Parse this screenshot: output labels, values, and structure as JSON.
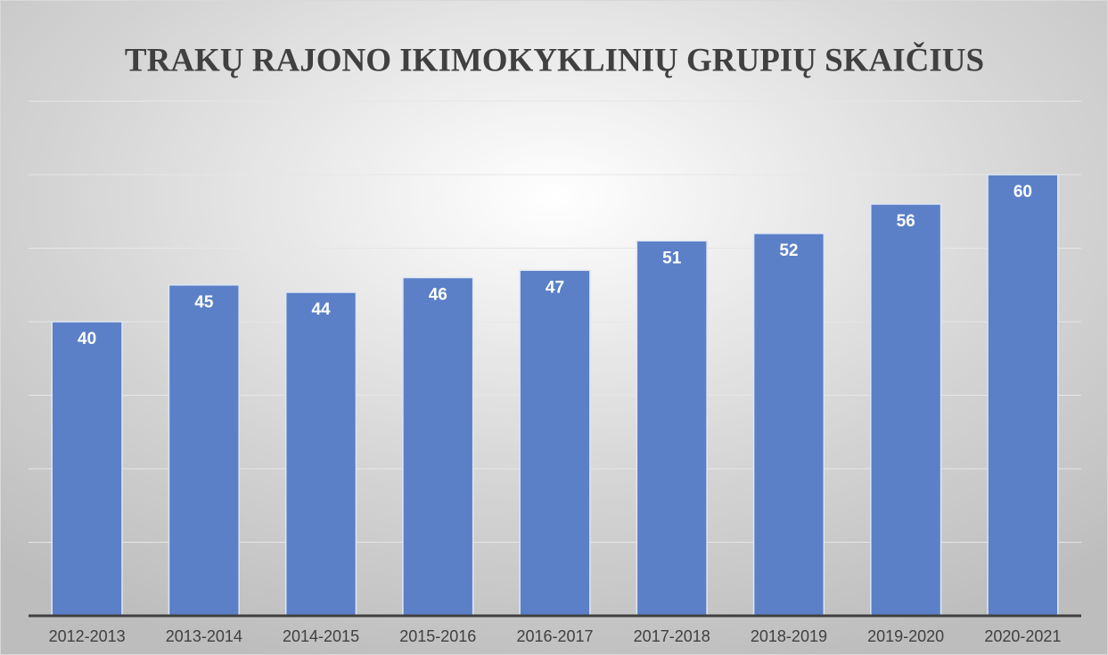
{
  "chart_data": {
    "type": "bar",
    "title": "TRAKŲ RAJONO IKIMOKYKLINIŲ GRUPIŲ SKAIČIUS",
    "categories": [
      "2012-2013",
      "2013-2014",
      "2014-2015",
      "2015-2016",
      "2016-2017",
      "2017-2018",
      "2018-2019",
      "2019-2020",
      "2020-2021"
    ],
    "values": [
      40,
      45,
      44,
      46,
      47,
      51,
      52,
      56,
      60
    ],
    "color": "#5b80c8",
    "ylim": [
      0,
      70
    ],
    "yticks": [
      0,
      10,
      20,
      30,
      40,
      50,
      60,
      70
    ],
    "grid": true
  }
}
